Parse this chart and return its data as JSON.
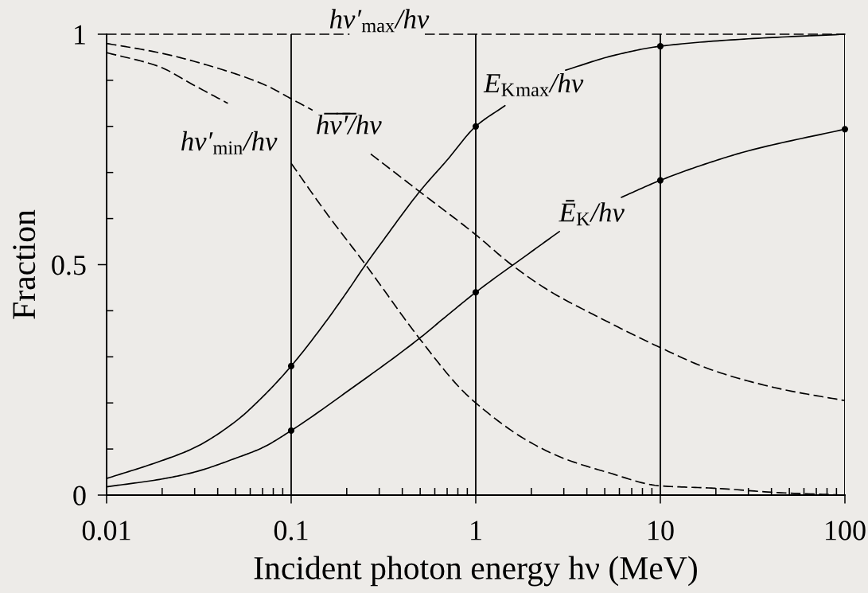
{
  "chart_data": {
    "type": "line",
    "xlabel": "Incident photon energy hν (MeV)",
    "ylabel": "Fraction",
    "log": "x",
    "xlim": [
      0.01,
      100
    ],
    "ylim": [
      0,
      1
    ],
    "grid": "x",
    "xticks": [
      0.01,
      {
        "value": 0.02,
        "label": null
      },
      {
        "value": 0.03,
        "label": null
      },
      {
        "value": 0.04,
        "label": null
      },
      {
        "value": 0.05,
        "label": null
      },
      {
        "value": 0.06,
        "label": null
      },
      {
        "value": 0.07,
        "label": null
      },
      {
        "value": 0.08,
        "label": null
      },
      {
        "value": 0.09,
        "label": null
      },
      0.1,
      {
        "value": 0.2,
        "label": null
      },
      {
        "value": 0.3,
        "label": null
      },
      {
        "value": 0.4,
        "label": null
      },
      {
        "value": 0.5,
        "label": null
      },
      {
        "value": 0.6,
        "label": null
      },
      {
        "value": 0.7,
        "label": null
      },
      {
        "value": 0.8,
        "label": null
      },
      {
        "value": 0.9,
        "label": null
      },
      1,
      {
        "value": 2,
        "label": null
      },
      {
        "value": 3,
        "label": null
      },
      {
        "value": 4,
        "label": null
      },
      {
        "value": 5,
        "label": null
      },
      {
        "value": 6,
        "label": null
      },
      {
        "value": 7,
        "label": null
      },
      {
        "value": 8,
        "label": null
      },
      {
        "value": 9,
        "label": null
      },
      10,
      {
        "value": 20,
        "label": null
      },
      {
        "value": 30,
        "label": null
      },
      {
        "value": 40,
        "label": null
      },
      {
        "value": 50,
        "label": null
      },
      {
        "value": 60,
        "label": null
      },
      {
        "value": 70,
        "label": null
      },
      {
        "value": 80,
        "label": null
      },
      {
        "value": 90,
        "label": null
      },
      100
    ],
    "yticks": [
      0,
      {
        "value": 0.1,
        "label": null
      },
      {
        "value": 0.2,
        "label": null
      },
      {
        "value": 0.3,
        "label": null
      },
      {
        "value": 0.4,
        "label": null
      },
      0.5,
      {
        "value": 0.6,
        "label": null
      },
      {
        "value": 0.7,
        "label": null
      },
      {
        "value": 0.8,
        "label": null
      },
      {
        "value": 0.9,
        "label": null
      },
      1
    ],
    "series": [
      {
        "name": "hν′$_{max}$/hν",
        "line_style": "dashed",
        "marker": "none",
        "color": "#000000",
        "x": [
          0.01,
          0.207,
          0.3,
          0.53,
          100
        ],
        "values": [
          1,
          1,
          null,
          1,
          1
        ]
      },
      {
        "name": "hν′$_{min}$/hν",
        "line_style": "dashed",
        "marker": "none",
        "color": "#000000",
        "x": [
          0.01,
          0.0192,
          0.0295,
          0.0454,
          0.065,
          0.1,
          0.15,
          0.253,
          0.495,
          0.832,
          1,
          1.87,
          2.98,
          5.11,
          10,
          19.5,
          45.3,
          100
        ],
        "values": [
          0.96,
          0.93,
          0.89,
          0.85,
          null,
          0.72,
          0.62,
          0.5,
          0.34,
          0.23,
          0.2,
          0.12,
          0.08,
          0.05,
          0.02,
          0.015,
          0.005,
          0
        ]
      },
      {
        "name": "h̅ν̅′̅/hν",
        "line_style": "dashed",
        "marker": "none",
        "color": "#000000",
        "x": [
          0.01,
          0.0192,
          0.0372,
          0.0721,
          0.1,
          0.1306,
          0.19,
          0.27,
          0.491,
          1,
          1.56,
          2.58,
          4.43,
          10,
          19.5,
          45.3,
          100
        ],
        "values": [
          0.98,
          0.96,
          0.93,
          0.89,
          0.86,
          0.835,
          null,
          0.74,
          0.66,
          0.565,
          0.5,
          0.44,
          0.39,
          0.32,
          0.27,
          0.23,
          0.205
        ]
      },
      {
        "name": "E$_{K}$$_{max}$/hν",
        "line_style": "solid",
        "marker": "none",
        "color": "#000000",
        "x": [
          0.01,
          0.02,
          0.03,
          0.05,
          0.07,
          0.1,
          0.15,
          0.2,
          0.253,
          0.309,
          0.5,
          0.7,
          1,
          1.44,
          2.1,
          3.07,
          5.6,
          10,
          30,
          100
        ],
        "values": [
          0.036,
          0.075,
          0.103,
          0.16,
          0.213,
          0.28,
          0.37,
          0.44,
          0.5,
          0.548,
          0.66,
          0.727,
          0.8,
          0.845,
          null,
          0.922,
          0.954,
          0.974,
          0.99,
          1.0
        ]
      },
      {
        "name": "Ē$_{K}$/hν",
        "line_style": "solid",
        "marker": "none",
        "color": "#000000",
        "x": [
          0.01,
          0.02,
          0.03,
          0.05,
          0.07,
          0.1,
          0.2,
          0.495,
          0.668,
          1,
          2,
          2.84,
          4.2,
          6.15,
          10,
          17.1,
          30,
          100
        ],
        "values": [
          0.018,
          0.035,
          0.05,
          0.08,
          0.103,
          0.14,
          0.224,
          0.34,
          0.383,
          0.44,
          0.528,
          0.572,
          null,
          0.646,
          0.683,
          0.717,
          0.747,
          0.794
        ]
      },
      {
        "type": "scatter",
        "marker": "circle",
        "color": "#000000",
        "x": [
          0.1,
          1,
          10,
          0.1,
          1,
          10,
          100
        ],
        "values": [
          0.28,
          0.8,
          0.974,
          0.14,
          0.44,
          0.683,
          0.794
        ]
      }
    ]
  }
}
